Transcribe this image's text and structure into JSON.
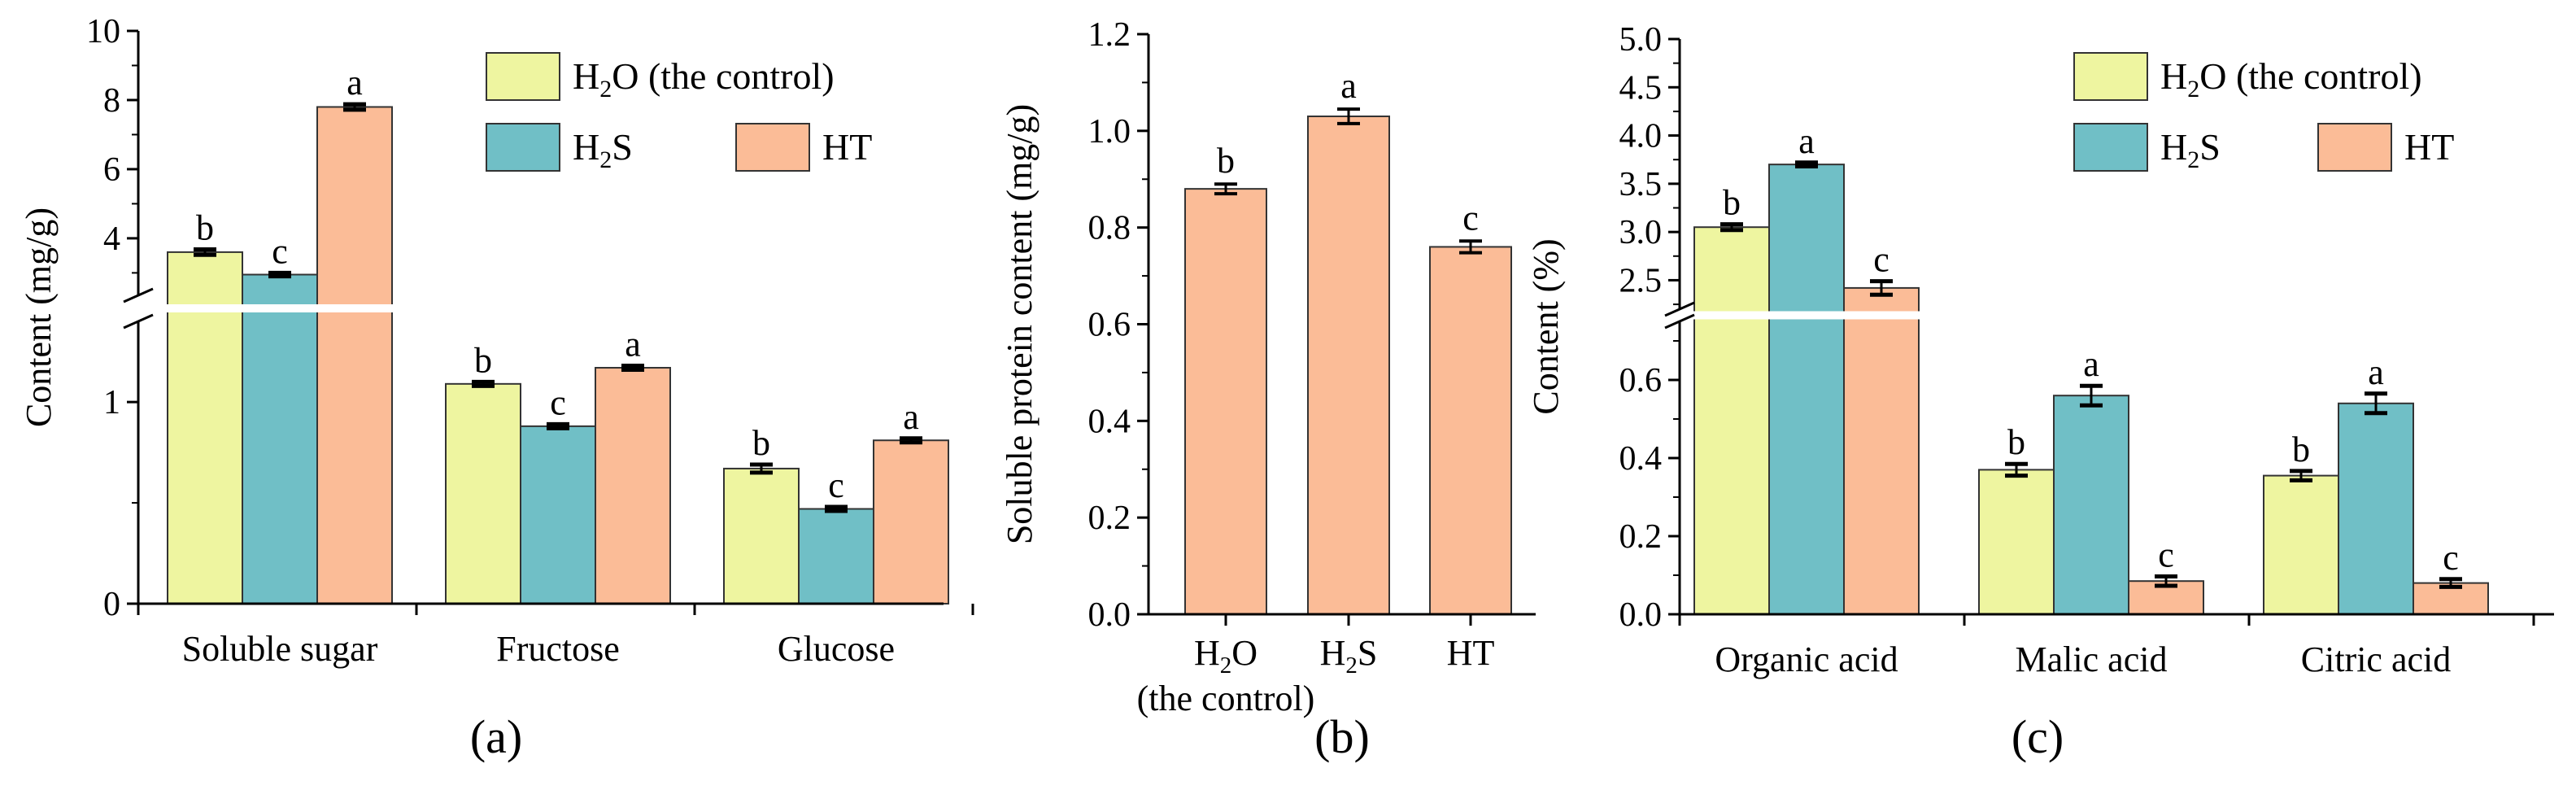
{
  "colors": {
    "h2o": "#eef5a0",
    "h2s": "#70bfc6",
    "ht": "#fbbc97",
    "axis": "#000000",
    "error": "#000000"
  },
  "chart_data": [
    {
      "id": "a",
      "panel_label": "(a)",
      "type": "bar",
      "ylabel": "Content (mg/g)",
      "categories": [
        "Soluble sugar",
        "Fructose",
        "Glucose"
      ],
      "y_axis_break": {
        "lower": [
          0,
          1.4
        ],
        "upper": [
          2.35,
          10
        ]
      },
      "lower_ticks": [
        "0",
        "1"
      ],
      "upper_ticks": [
        "4",
        "6",
        "8",
        "10"
      ],
      "series": [
        {
          "name": "H2O (the control)",
          "color_key": "h2o",
          "values": [
            3.6,
            1.09,
            0.67
          ],
          "errors": [
            0.08,
            0.01,
            0.02
          ],
          "letters": [
            "b",
            "b",
            "b"
          ]
        },
        {
          "name": "H2S",
          "color_key": "h2s",
          "values": [
            2.95,
            0.88,
            0.47
          ],
          "errors": [
            0.05,
            0.01,
            0.01
          ],
          "letters": [
            "c",
            "c",
            "c"
          ]
        },
        {
          "name": "HT",
          "color_key": "ht",
          "values": [
            7.8,
            1.17,
            0.81
          ],
          "errors": [
            0.08,
            0.01,
            0.01
          ],
          "letters": [
            "a",
            "a",
            "a"
          ]
        }
      ],
      "legend": {
        "items": [
          {
            "base": "H",
            "sub": "2",
            "rest": "O (the control)",
            "color_key": "h2o"
          },
          {
            "base": "H",
            "sub": "2",
            "rest": "S",
            "color_key": "h2s"
          },
          {
            "base": "HT",
            "sub": "",
            "rest": "",
            "color_key": "ht"
          }
        ]
      }
    },
    {
      "id": "b",
      "panel_label": "(b)",
      "type": "bar",
      "ylabel": "Soluble protein content (mg/g)",
      "ylim": [
        0,
        1.2
      ],
      "yticks": [
        "0.0",
        "0.2",
        "0.4",
        "0.6",
        "0.8",
        "1.0",
        "1.2"
      ],
      "bars": [
        {
          "label_base": "H",
          "label_sub": "2",
          "label_rest": "O",
          "label_line2": "(the control)",
          "value": 0.88,
          "error": 0.01,
          "letter": "b"
        },
        {
          "label_base": "H",
          "label_sub": "2",
          "label_rest": "S",
          "label_line2": "",
          "value": 1.03,
          "error": 0.015,
          "letter": "a"
        },
        {
          "label_base": "HT",
          "label_sub": "",
          "label_rest": "",
          "label_line2": "",
          "value": 0.76,
          "error": 0.012,
          "letter": "c"
        }
      ],
      "color_key": "ht"
    },
    {
      "id": "c",
      "panel_label": "(c)",
      "type": "bar",
      "ylabel": "Content (%)",
      "categories": [
        "Organic acid",
        "Malic acid",
        "Citric acid"
      ],
      "y_axis_break": {
        "lower": [
          0,
          0.75
        ],
        "upper": [
          2.2,
          5.0
        ]
      },
      "lower_ticks": [
        "0.0",
        "0.2",
        "0.4",
        "0.6"
      ],
      "upper_ticks": [
        "2.5",
        "3.0",
        "3.5",
        "4.0",
        "4.5",
        "5.0"
      ],
      "series": [
        {
          "name": "H2O (the control)",
          "color_key": "h2o",
          "values": [
            3.05,
            0.37,
            0.355
          ],
          "errors": [
            0.03,
            0.015,
            0.012
          ],
          "letters": [
            "b",
            "b",
            "b"
          ]
        },
        {
          "name": "H2S",
          "color_key": "h2s",
          "values": [
            3.7,
            0.56,
            0.54
          ],
          "errors": [
            0.02,
            0.025,
            0.025
          ],
          "letters": [
            "a",
            "a",
            "a"
          ]
        },
        {
          "name": "HT",
          "color_key": "ht",
          "values": [
            2.42,
            0.085,
            0.08
          ],
          "errors": [
            0.07,
            0.012,
            0.01
          ],
          "letters": [
            "c",
            "c",
            "c"
          ]
        }
      ],
      "legend": {
        "items": [
          {
            "base": "H",
            "sub": "2",
            "rest": "O (the control)",
            "color_key": "h2o"
          },
          {
            "base": "H",
            "sub": "2",
            "rest": "S",
            "color_key": "h2s"
          },
          {
            "base": "HT",
            "sub": "",
            "rest": "",
            "color_key": "ht"
          }
        ]
      }
    }
  ]
}
